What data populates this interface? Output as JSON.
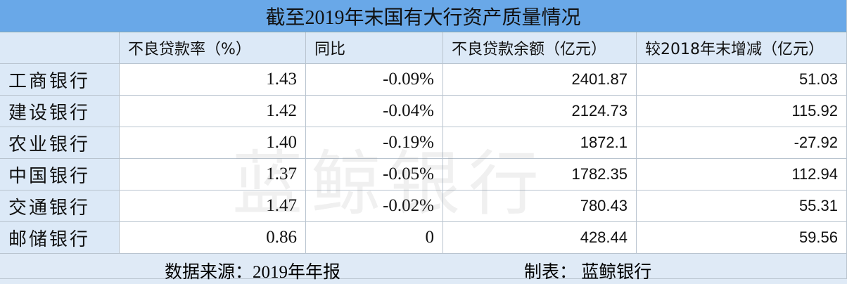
{
  "title": "截至2019年末国有大行资产质量情况",
  "table": {
    "header": [
      "",
      "不良贷款率（%）",
      "同比",
      "不良贷款余额（亿元）",
      "较2018年末增减（亿元）"
    ],
    "rows": [
      [
        "工商银行",
        "1.43",
        "-0.09%",
        "2401.87",
        "51.03"
      ],
      [
        "建设银行",
        "1.42",
        "-0.04%",
        "2124.73",
        "115.92"
      ],
      [
        "农业银行",
        "1.40",
        "-0.19%",
        "1872.1",
        "-27.92"
      ],
      [
        "中国银行",
        "1.37",
        "-0.05%",
        "1782.35",
        "112.94"
      ],
      [
        "交通银行",
        "1.47",
        "-0.02%",
        "780.43",
        "55.31"
      ],
      [
        "邮储银行",
        "0.86",
        "0",
        "428.44",
        "59.56"
      ]
    ]
  },
  "footer": {
    "source": "数据来源：2019年年报",
    "maker": "制表： 蓝鲸银行"
  },
  "watermark": "蓝鲸银行"
}
